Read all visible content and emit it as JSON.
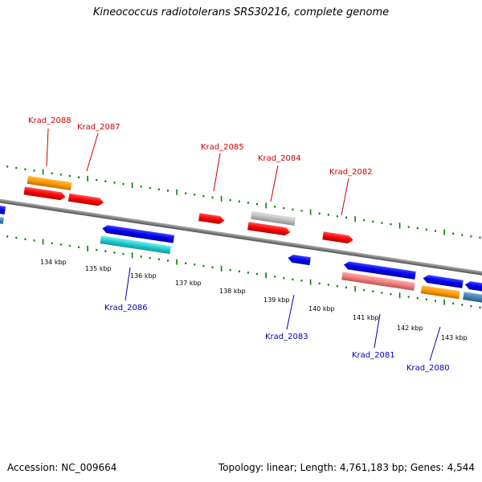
{
  "title": "Kineococcus radiotolerans SRS30216, complete genome",
  "accession": "Accession: NC_009664",
  "topology": "Topology: linear; Length: 4,761,183 bp; Genes: 4,544",
  "colors": {
    "forward_label": "#cc0000",
    "reverse_label": "#0000aa",
    "backbone": "#808080",
    "tick": "#008000",
    "red": "#ff0000",
    "orange": "#ff9900",
    "blue": "#0000ee",
    "cyan": "#22cccc",
    "gray": "#c0c0c0",
    "pink": "#f08080",
    "steel": "#4682b4"
  },
  "ruler_labels": [
    "134 kbp",
    "135 kbp",
    "136 kbp",
    "137 kbp",
    "138 kbp",
    "139 kbp",
    "140 kbp",
    "141 kbp",
    "142 kbp",
    "143 kbp"
  ],
  "forward_gene_labels": [
    "Krad_2088",
    "Krad_2087",
    "Krad_2085",
    "Krad_2084",
    "Krad_2082"
  ],
  "reverse_gene_labels": [
    "Krad_2086",
    "Krad_2083",
    "Krad_2081",
    "Krad_2080"
  ]
}
